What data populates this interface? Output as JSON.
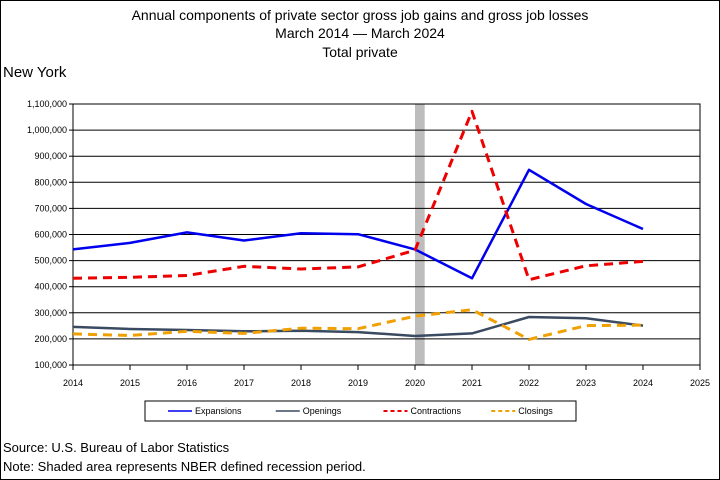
{
  "chart_data": {
    "type": "line",
    "title": [
      "Annual components of private sector gross job gains and gross job losses",
      "March 2014 — March 2024",
      "Total private"
    ],
    "region": "New York",
    "x": [
      2014,
      2015,
      2016,
      2017,
      2018,
      2019,
      2020,
      2021,
      2022,
      2023,
      2024
    ],
    "x_ticks": [
      2014,
      2015,
      2016,
      2017,
      2018,
      2019,
      2020,
      2021,
      2022,
      2023,
      2024,
      2025
    ],
    "y_ticks": [
      100000,
      200000,
      300000,
      400000,
      500000,
      600000,
      700000,
      800000,
      900000,
      1000000,
      1100000
    ],
    "y_tick_labels": [
      "100,000",
      "200,000",
      "300,000",
      "400,000",
      "500,000",
      "600,000",
      "700,000",
      "800,000",
      "900,000",
      "1,000,000",
      "1,100,000"
    ],
    "xlim": [
      2014,
      2025
    ],
    "ylim": [
      100000,
      1100000
    ],
    "grid": "horizontal",
    "recession": {
      "start": 2020,
      "end": 2020.17
    },
    "legend_position": "bottom",
    "series": [
      {
        "name": "Expansions",
        "color": "#0000ee",
        "style": "solid",
        "values": [
          543000,
          568000,
          608000,
          577000,
          605000,
          601000,
          543000,
          432000,
          848000,
          717000,
          621000
        ]
      },
      {
        "name": "Openings",
        "color": "#3a4a60",
        "style": "solid",
        "values": [
          246000,
          238000,
          234000,
          229000,
          231000,
          226000,
          211000,
          221000,
          284000,
          279000,
          251000
        ]
      },
      {
        "name": "Contractions",
        "color": "#ee0000",
        "style": "dashed",
        "values": [
          432000,
          436000,
          443000,
          478000,
          468000,
          476000,
          540000,
          1072000,
          427000,
          480000,
          497000
        ]
      },
      {
        "name": "Closings",
        "color": "#f0a000",
        "style": "dashed",
        "values": [
          219000,
          213000,
          229000,
          221000,
          241000,
          239000,
          287000,
          312000,
          198000,
          251000,
          253000
        ]
      }
    ]
  },
  "footer": {
    "source": "Source: U.S. Bureau of Labor Statistics",
    "note": "Note: Shaded area represents NBER defined recession period."
  }
}
